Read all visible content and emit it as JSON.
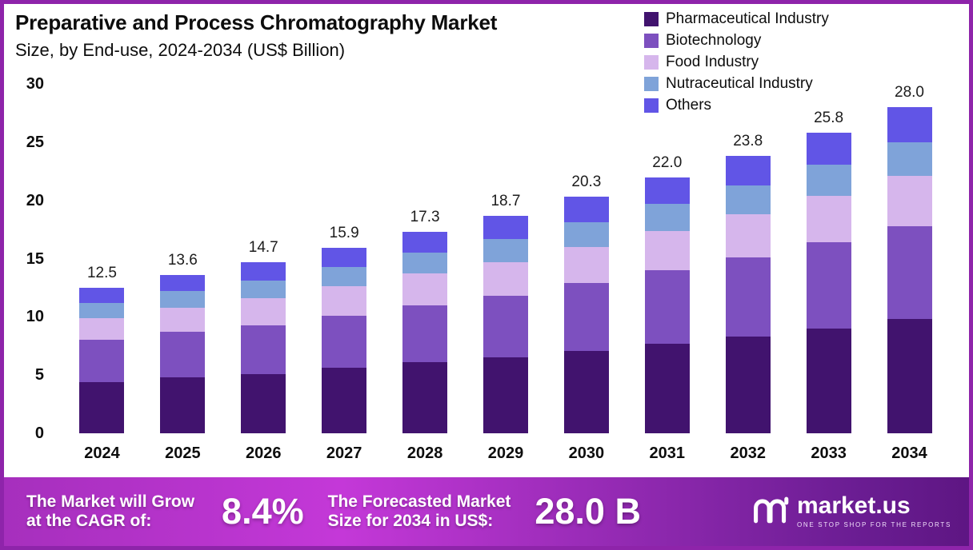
{
  "theme": {
    "page_border": "#8e24aa",
    "banner_gradient": [
      "#a62fbd 0%",
      "#c438d8 35%",
      "#9a2cb8 60%",
      "#6b1d93 88%",
      "#5e1683 100%"
    ]
  },
  "chart_data": {
    "type": "bar",
    "stacked": true,
    "title": "Preparative and Process Chromatography Market",
    "subtitle": "Size, by End-use, 2024-2034 (US$ Billion)",
    "categories": [
      "2024",
      "2025",
      "2026",
      "2027",
      "2028",
      "2029",
      "2030",
      "2031",
      "2032",
      "2033",
      "2034"
    ],
    "totals": [
      12.5,
      13.6,
      14.7,
      15.9,
      17.3,
      18.7,
      20.3,
      22.0,
      23.8,
      25.8,
      28.0
    ],
    "series": [
      {
        "name": "Pharmaceutical Industry",
        "color": "#41136e",
        "values": [
          4.4,
          4.8,
          5.1,
          5.6,
          6.1,
          6.5,
          7.1,
          7.7,
          8.3,
          9.0,
          9.8
        ]
      },
      {
        "name": "Biotechnology",
        "color": "#7d50bf",
        "values": [
          3.6,
          3.9,
          4.2,
          4.5,
          4.9,
          5.3,
          5.8,
          6.3,
          6.8,
          7.4,
          8.0
        ]
      },
      {
        "name": "Food Industry",
        "color": "#d6b6ec",
        "values": [
          1.9,
          2.1,
          2.3,
          2.5,
          2.7,
          2.9,
          3.1,
          3.4,
          3.7,
          4.0,
          4.3
        ]
      },
      {
        "name": "Nutraceutical Industry",
        "color": "#7fa3d9",
        "values": [
          1.3,
          1.4,
          1.5,
          1.7,
          1.8,
          2.0,
          2.1,
          2.3,
          2.5,
          2.7,
          2.9
        ]
      },
      {
        "name": "Others",
        "color": "#6155e6",
        "values": [
          1.3,
          1.4,
          1.6,
          1.6,
          1.8,
          2.0,
          2.2,
          2.3,
          2.5,
          2.7,
          3.0
        ]
      }
    ],
    "ylim": [
      0,
      30
    ],
    "yticks": [
      0,
      5,
      10,
      15,
      20,
      25,
      30
    ],
    "legend_position": "top-right",
    "grid": false
  },
  "banner": {
    "cagr_label_line1": "The Market will Grow",
    "cagr_label_line2": "at the CAGR of:",
    "cagr_value": "8.4%",
    "forecast_label_line1": "The Forecasted Market",
    "forecast_label_line2": "Size for 2034 in US$:",
    "forecast_value": "28.0 B",
    "logo_text": "market.us",
    "logo_tagline": "ONE STOP SHOP FOR THE REPORTS"
  }
}
